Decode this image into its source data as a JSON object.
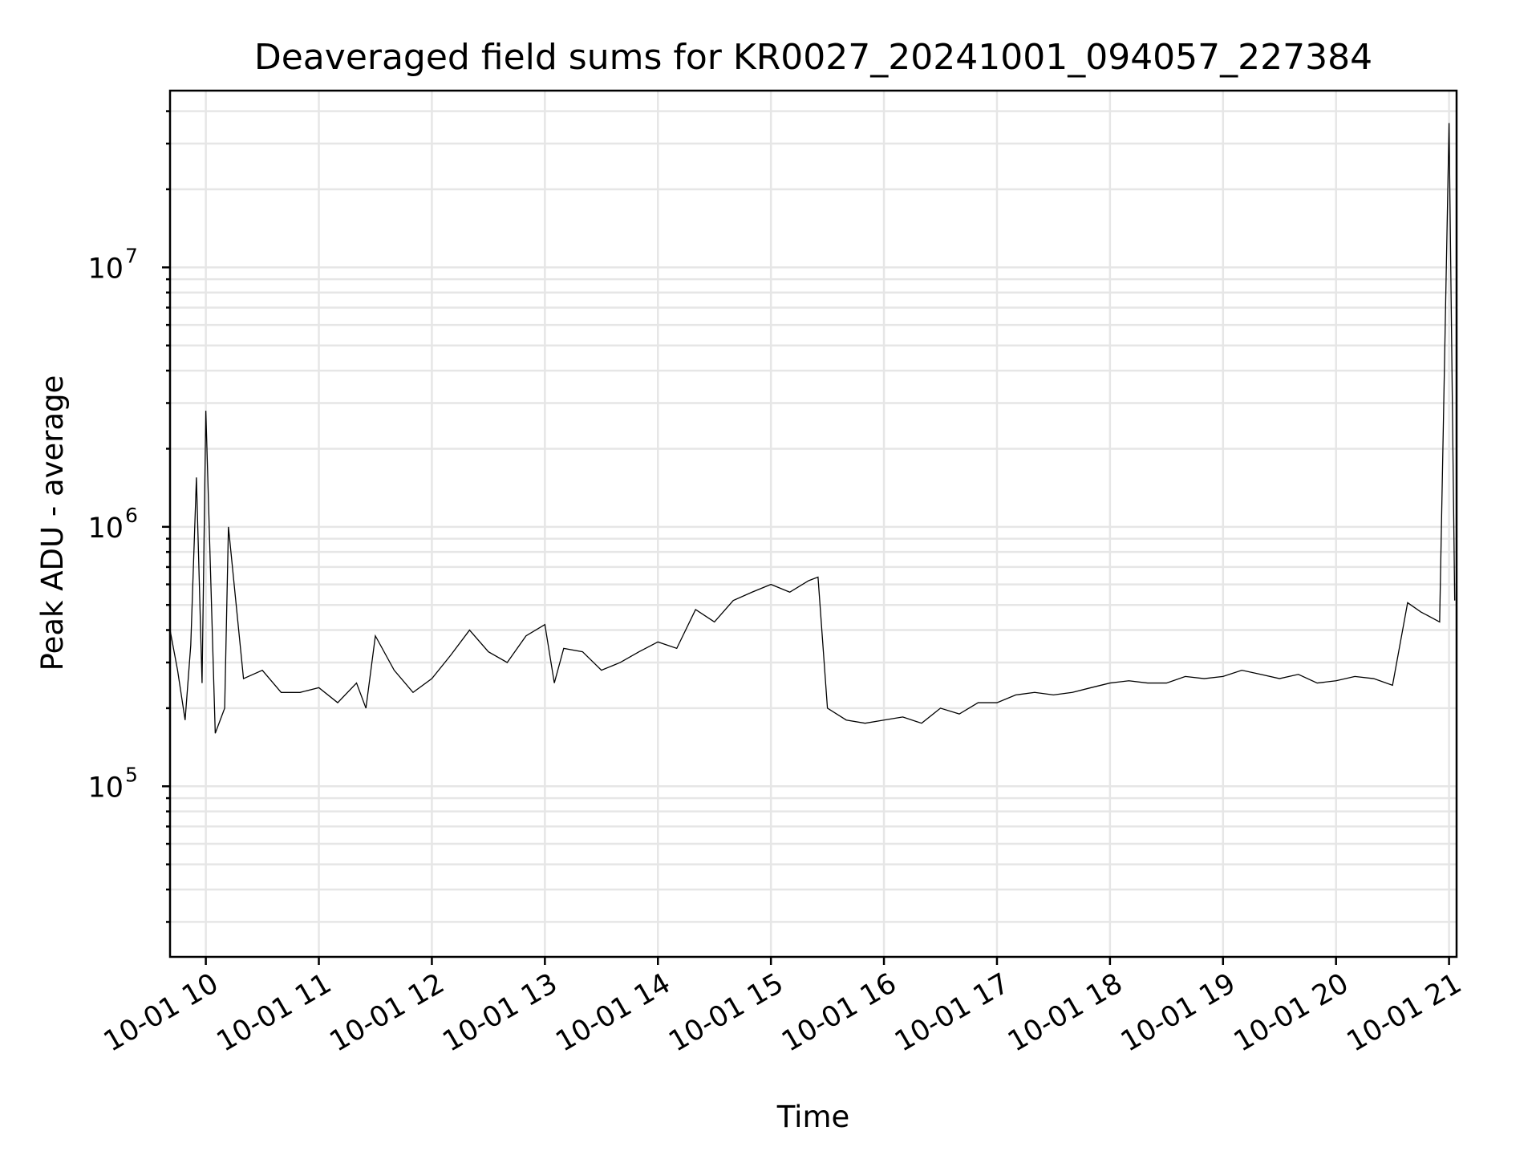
{
  "chart_data": {
    "type": "line",
    "title": "Deaveraged field sums for KR0027_20241001_094057_227384",
    "xlabel": "Time",
    "ylabel": "Peak ADU - average",
    "y_scale": "log",
    "grid": true,
    "grid_minor": true,
    "legend": "none",
    "line_color": "#000000",
    "xlim": [
      "2024-10-01 09:41",
      "2024-10-01 21:04"
    ],
    "ylim": [
      22000,
      48000000
    ],
    "x_ticks": [
      {
        "value": "2024-10-01 10:00",
        "label": "10-01 10"
      },
      {
        "value": "2024-10-01 11:00",
        "label": "10-01 11"
      },
      {
        "value": "2024-10-01 12:00",
        "label": "10-01 12"
      },
      {
        "value": "2024-10-01 13:00",
        "label": "10-01 13"
      },
      {
        "value": "2024-10-01 14:00",
        "label": "10-01 14"
      },
      {
        "value": "2024-10-01 15:00",
        "label": "10-01 15"
      },
      {
        "value": "2024-10-01 16:00",
        "label": "10-01 16"
      },
      {
        "value": "2024-10-01 17:00",
        "label": "10-01 17"
      },
      {
        "value": "2024-10-01 18:00",
        "label": "10-01 18"
      },
      {
        "value": "2024-10-01 19:00",
        "label": "10-01 19"
      },
      {
        "value": "2024-10-01 20:00",
        "label": "10-01 20"
      },
      {
        "value": "2024-10-01 21:00",
        "label": "10-01 21"
      }
    ],
    "y_ticks": [
      {
        "value": 100000,
        "base": "10",
        "exp": "5"
      },
      {
        "value": 1000000,
        "base": "10",
        "exp": "6"
      },
      {
        "value": 10000000,
        "base": "10",
        "exp": "7"
      }
    ],
    "series": [
      {
        "x": [
          "2024-10-01 09:41",
          "2024-10-01 09:45",
          "2024-10-01 09:49",
          "2024-10-01 09:52",
          "2024-10-01 09:55",
          "2024-10-01 09:58",
          "2024-10-01 10:00",
          "2024-10-01 10:05",
          "2024-10-01 10:10",
          "2024-10-01 10:12",
          "2024-10-01 10:20",
          "2024-10-01 10:30",
          "2024-10-01 10:40",
          "2024-10-01 10:50",
          "2024-10-01 11:00",
          "2024-10-01 11:10",
          "2024-10-01 11:20",
          "2024-10-01 11:25",
          "2024-10-01 11:30",
          "2024-10-01 11:40",
          "2024-10-01 11:50",
          "2024-10-01 12:00",
          "2024-10-01 12:10",
          "2024-10-01 12:20",
          "2024-10-01 12:30",
          "2024-10-01 12:40",
          "2024-10-01 12:50",
          "2024-10-01 13:00",
          "2024-10-01 13:05",
          "2024-10-01 13:10",
          "2024-10-01 13:20",
          "2024-10-01 13:30",
          "2024-10-01 13:40",
          "2024-10-01 13:50",
          "2024-10-01 14:00",
          "2024-10-01 14:10",
          "2024-10-01 14:20",
          "2024-10-01 14:30",
          "2024-10-01 14:40",
          "2024-10-01 14:50",
          "2024-10-01 15:00",
          "2024-10-01 15:10",
          "2024-10-01 15:20",
          "2024-10-01 15:25",
          "2024-10-01 15:30",
          "2024-10-01 15:40",
          "2024-10-01 15:50",
          "2024-10-01 16:00",
          "2024-10-01 16:10",
          "2024-10-01 16:20",
          "2024-10-01 16:30",
          "2024-10-01 16:40",
          "2024-10-01 16:50",
          "2024-10-01 17:00",
          "2024-10-01 17:10",
          "2024-10-01 17:20",
          "2024-10-01 17:30",
          "2024-10-01 17:40",
          "2024-10-01 17:50",
          "2024-10-01 18:00",
          "2024-10-01 18:10",
          "2024-10-01 18:20",
          "2024-10-01 18:30",
          "2024-10-01 18:40",
          "2024-10-01 18:50",
          "2024-10-01 19:00",
          "2024-10-01 19:10",
          "2024-10-01 19:20",
          "2024-10-01 19:30",
          "2024-10-01 19:40",
          "2024-10-01 19:50",
          "2024-10-01 20:00",
          "2024-10-01 20:10",
          "2024-10-01 20:20",
          "2024-10-01 20:30",
          "2024-10-01 20:38",
          "2024-10-01 20:45",
          "2024-10-01 20:55",
          "2024-10-01 21:00",
          "2024-10-01 21:03"
        ],
        "y": [
          400000,
          280000,
          180000,
          350000,
          1550000,
          250000,
          2800000,
          160000,
          200000,
          1000000,
          260000,
          280000,
          230000,
          230000,
          240000,
          210000,
          250000,
          200000,
          380000,
          280000,
          230000,
          260000,
          320000,
          400000,
          330000,
          300000,
          380000,
          420000,
          250000,
          340000,
          330000,
          280000,
          300000,
          330000,
          360000,
          340000,
          480000,
          430000,
          520000,
          560000,
          600000,
          560000,
          620000,
          640000,
          200000,
          180000,
          175000,
          180000,
          185000,
          175000,
          200000,
          190000,
          210000,
          210000,
          225000,
          230000,
          225000,
          230000,
          240000,
          250000,
          255000,
          250000,
          250000,
          265000,
          260000,
          265000,
          280000,
          270000,
          260000,
          270000,
          250000,
          255000,
          265000,
          260000,
          245000,
          510000,
          470000,
          430000,
          36000000,
          520000
        ]
      }
    ]
  }
}
